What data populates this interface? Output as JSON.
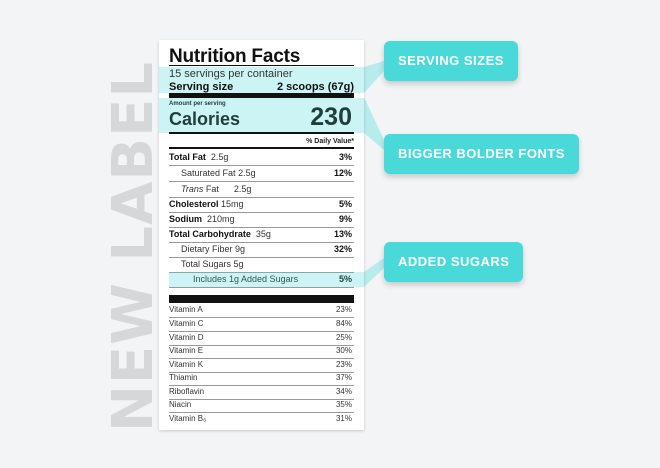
{
  "watermark": "NEW LABEL",
  "label": {
    "title": "Nutrition Facts",
    "servings": "15 servings per container",
    "serving_size_label": "Serving size",
    "serving_size_value": "2 scoops (67g)",
    "amount_per_serving": "Amount per serving",
    "calories_label": "Calories",
    "calories_value": "230",
    "daily_value_header": "% Daily Value*",
    "nutrients": [
      {
        "name": "Total Fat",
        "amount": "2.5g",
        "pct": "3%"
      },
      {
        "name": "Saturated Fat",
        "amount": "2.5g",
        "pct": "12%"
      },
      {
        "name": "Trans",
        "name_suffix": "Fat",
        "amount": "2.5g",
        "pct": ""
      },
      {
        "name": "Cholesterol",
        "amount": "15mg",
        "pct": "5%"
      },
      {
        "name": "Sodium",
        "amount": "210mg",
        "pct": "9%"
      },
      {
        "name": "Total Carbohydrate",
        "amount": "35g",
        "pct": "13%"
      },
      {
        "name": "Dietary Fiber 9g",
        "amount": "",
        "pct": "32%"
      },
      {
        "name": "Total Sugars 5g",
        "amount": "",
        "pct": ""
      },
      {
        "name": "Includes 1g Added Sugars",
        "amount": "",
        "pct": "5%"
      }
    ],
    "vitamins": [
      {
        "name": "Vitamin A",
        "pct": "23%"
      },
      {
        "name": "Vitamin C",
        "pct": "84%"
      },
      {
        "name": "Vitamin D",
        "pct": "25%"
      },
      {
        "name": "Vitamin E",
        "pct": "30%"
      },
      {
        "name": "Vitamin K",
        "pct": "23%"
      },
      {
        "name": "Thiamin",
        "pct": "37%"
      },
      {
        "name": "Riboflavin",
        "pct": "34%"
      },
      {
        "name": "Niacin",
        "pct": "35%"
      },
      {
        "name": "Vitamin B₆",
        "pct": "31%"
      }
    ]
  },
  "callouts": {
    "serving_sizes": "SERVING SIZES",
    "bigger_bolder_fonts": "BIGGER BOLDER FONTS",
    "added_sugars": "ADDED SUGARS"
  },
  "colors": {
    "accent": "#4ad9d9",
    "background": "#f3f4f6",
    "watermark": "#d6d7d9"
  }
}
